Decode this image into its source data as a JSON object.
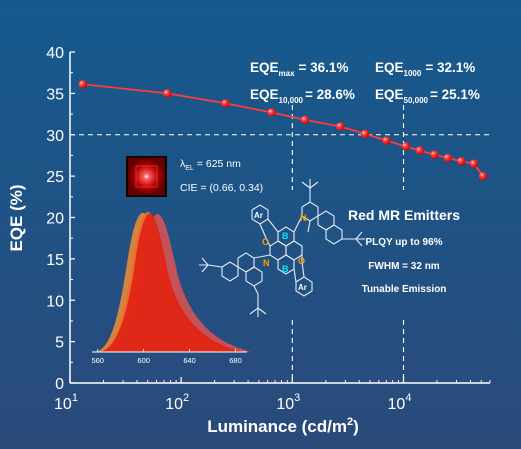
{
  "chart_data": {
    "type": "scatter",
    "xlabel": "Luminance (cd/m",
    "xlabel_sup": "2",
    "xlabel_close": ")",
    "ylabel": "EQE (%)",
    "xscale": "log",
    "xlim": [
      10,
      60000
    ],
    "ylim": [
      0,
      40
    ],
    "y_ticks": [
      "0",
      "5",
      "10",
      "15",
      "20",
      "25",
      "30",
      "35",
      "40"
    ],
    "x_ticks": [
      {
        "base": "10",
        "exp": "1",
        "value": 10
      },
      {
        "base": "10",
        "exp": "2",
        "value": 100
      },
      {
        "base": "10",
        "exp": "3",
        "value": 1000
      },
      {
        "base": "10",
        "exp": "4",
        "value": 10000
      }
    ],
    "reference_line": {
      "y": 30,
      "style": "dashed",
      "color": "#ffffff"
    },
    "reference_verticals": [
      {
        "x": 1000
      },
      {
        "x": 10000
      }
    ],
    "series": [
      {
        "color": "#ff3b3b",
        "x": [
          13,
          75,
          250,
          650,
          1300,
          2700,
          4500,
          7000,
          10500,
          14000,
          19000,
          25000,
          33000,
          43000,
          52000
        ],
        "y": [
          36.1,
          35.0,
          33.8,
          32.7,
          31.8,
          31.0,
          30.1,
          29.3,
          28.6,
          28.1,
          27.6,
          27.2,
          26.8,
          26.5,
          25.0
        ]
      }
    ]
  },
  "stats": {
    "max": {
      "label": "EQE",
      "sub": "max",
      "value": "= 36.1%"
    },
    "s1000": {
      "label": "EQE",
      "sub": "1000",
      "value": "= 32.1%"
    },
    "s10000": {
      "label": "EQE",
      "sub": "10,000",
      "value": "= 28.6%"
    },
    "s50000": {
      "label": "EQE",
      "sub": "50,000",
      "value": "= 25.1%"
    },
    "sub_color": "#22dd44"
  },
  "inset": {
    "lambda_symbol": "λ",
    "lambda_sub": "EL",
    "lambda_value": "= 625 nm",
    "cie": "CIE = (0.66, 0.34)",
    "ticks": [
      "560",
      "600",
      "640",
      "680"
    ]
  },
  "molecule": {
    "atoms": {
      "boron": "B",
      "nitrogen": "N",
      "oxygen": "O",
      "aryl": "Ar"
    },
    "boron_color": "#00e5ff",
    "nitrogen_color": "#ffa000",
    "oxygen_color": "#ffa000"
  },
  "info": {
    "title": "Red MR Emitters",
    "line1": "PLQY up to 96%",
    "line2": "FWHM = 32 nm",
    "line3": "Tunable Emission"
  }
}
